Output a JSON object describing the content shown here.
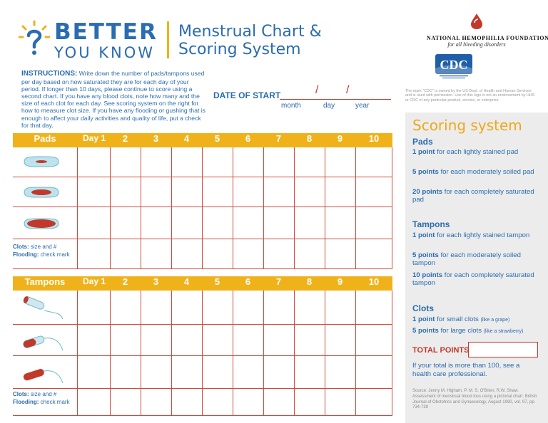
{
  "brand": {
    "line1": "BETTER",
    "line2": "YOU KNOW",
    "title_line1": "Menstrual Chart &",
    "title_line2": "Scoring System"
  },
  "nhf": {
    "name": "NATIONAL HEMOPHILIA FOUNDATION",
    "tagline": "for all bleeding disorders"
  },
  "cdc": {
    "logo_text": "CDC",
    "note": "The mark \"CDC\" is owned by the US Dept. of Health and Human Services and is used with permission. Use of this logo is not an endorsement by HHS or CDC of any particular product, service, or enterprise."
  },
  "instructions": {
    "label": "INSTRUCTIONS:",
    "text": "Write down the number of pads/tampons used per day based on how saturated they are for each day of your period. If longer than 10 days, please continue to score using a second chart. If you have any blood clots, note how many and the size of each clot for each day. See scoring system on the right for how to measure clot size. If you have any flooding or gushing that is enough to affect your daily activities and quality of life, put a check for that day."
  },
  "date": {
    "label": "DATE OF START",
    "month": "month",
    "day": "day",
    "year": "year"
  },
  "pads_table": {
    "header": "Pads",
    "days": [
      "Day 1",
      "2",
      "3",
      "4",
      "5",
      "6",
      "7",
      "8",
      "9",
      "10"
    ],
    "clots_label": "Clots:",
    "clots_text": "size and #",
    "flooding_label": "Flooding:",
    "flooding_text": "check mark"
  },
  "tampons_table": {
    "header": "Tampons",
    "days": [
      "Day 1",
      "2",
      "3",
      "4",
      "5",
      "6",
      "7",
      "8",
      "9",
      "10"
    ],
    "clots_label": "Clots:",
    "clots_text": "size and #",
    "flooding_label": "Flooding:",
    "flooding_text": "check mark"
  },
  "scoring": {
    "title": "Scoring system",
    "pads_heading": "Pads",
    "pads": [
      {
        "points": "1 point",
        "text": "for each lightly stained pad"
      },
      {
        "points": "5 points",
        "text": "for each moderately soiled pad"
      },
      {
        "points": "20 points",
        "text": "for each completely saturated pad"
      }
    ],
    "tampons_heading": "Tampons",
    "tampons": [
      {
        "points": "1 point",
        "text": "for each lightly stained tampon"
      },
      {
        "points": "5 points",
        "text": "for each moderately soiled tampon"
      },
      {
        "points": "10 points",
        "text": "for each completely saturated tampon"
      }
    ],
    "clots_heading": "Clots",
    "clots": [
      {
        "points": "1 point",
        "text": "for small clots",
        "note": "(like a grape)"
      },
      {
        "points": "5 points",
        "text": "for large clots",
        "note": "(like a strawberry)"
      }
    ],
    "total_label": "TOTAL POINTS",
    "advice": "If your total is more than 100, see a health care professional.",
    "source": "Source: Jenny M. Higham, P. M. S. O'Brien, R.W. Shaw. Assessment of menstrual blood loss using a pictorial chart. British Journal of Obstetrics and Gynaecology, August 1990, vol. 97, pp. 734-739"
  },
  "colors": {
    "blue": "#2a6cb0",
    "gold": "#f0b21a",
    "red": "#c0392b",
    "panel": "#ececec"
  }
}
